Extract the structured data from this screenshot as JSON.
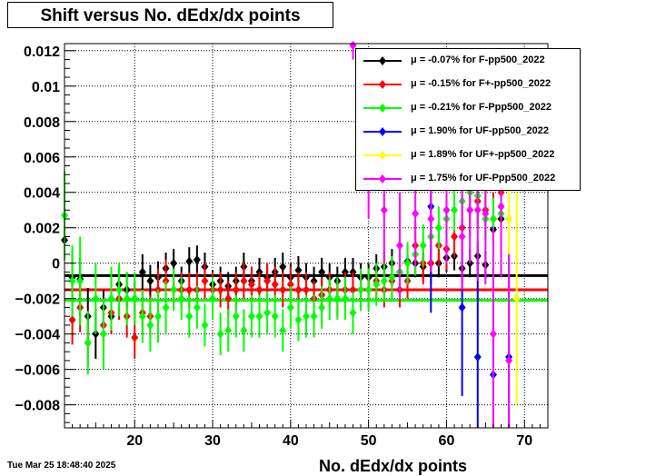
{
  "title": "Shift versus No. dEdx/dx points",
  "timestamp": "Tue Mar 25 18:48:40 2025",
  "chart_data": {
    "type": "scatter",
    "xlabel": "No. dEdx/dx points",
    "ylabel": "",
    "xlim": [
      11,
      73
    ],
    "ylim": [
      -0.0093,
      0.0124
    ],
    "x_ticks": [
      20,
      30,
      40,
      50,
      60,
      70
    ],
    "y_ticks": [
      -0.008,
      -0.006,
      -0.004,
      -0.002,
      0,
      0.002,
      0.004,
      0.006,
      0.008,
      0.01,
      0.012
    ],
    "x_tick_labels": [
      "20",
      "30",
      "40",
      "50",
      "60",
      "70"
    ],
    "y_tick_labels": [
      "−0.008",
      "−0.006",
      "−0.004",
      "−0.002",
      "0",
      "0.002",
      "0.004",
      "0.006",
      "0.008",
      "0.01",
      "0.012"
    ],
    "grid": true,
    "legend_position": "top-right",
    "series": [
      {
        "name": "F-pp500_2022",
        "legend_label": "μ = -0.07% for F-pp500_2022",
        "color": "#000000",
        "mean": -0.0007,
        "points": [
          [
            11,
            0.0013,
            0.001
          ],
          [
            12,
            -0.0008,
            0.0015
          ],
          [
            13,
            -0.0009,
            0.0012
          ],
          [
            14,
            -0.003,
            0.0016
          ],
          [
            15,
            -0.004,
            0.0014
          ],
          [
            16,
            -0.0025,
            0.001
          ],
          [
            17,
            -0.003,
            0.001
          ],
          [
            18,
            -0.0012,
            0.001
          ],
          [
            19,
            -0.0015,
            0.001
          ],
          [
            20,
            -0.002,
            0.001
          ],
          [
            21,
            -0.0005,
            0.001
          ],
          [
            22,
            -0.001,
            0.0009
          ],
          [
            23,
            -0.0008,
            0.0009
          ],
          [
            24,
            -0.0003,
            0.0009
          ],
          [
            25,
            0.0,
            0.0008
          ],
          [
            26,
            -0.001,
            0.0008
          ],
          [
            27,
            0.0001,
            0.0008
          ],
          [
            28,
            0.0002,
            0.0008
          ],
          [
            29,
            -0.0002,
            0.0008
          ],
          [
            30,
            -0.0012,
            0.0008
          ],
          [
            31,
            -0.001,
            0.0008
          ],
          [
            32,
            -0.0013,
            0.0008
          ],
          [
            33,
            -0.001,
            0.0008
          ],
          [
            34,
            -0.0002,
            0.0008
          ],
          [
            35,
            -0.001,
            0.0008
          ],
          [
            36,
            -0.0005,
            0.0008
          ],
          [
            37,
            -0.0008,
            0.0008
          ],
          [
            38,
            -0.0005,
            0.0008
          ],
          [
            39,
            -0.0002,
            0.0008
          ],
          [
            40,
            -0.0008,
            0.0008
          ],
          [
            41,
            -0.0004,
            0.0008
          ],
          [
            42,
            -0.0008,
            0.0008
          ],
          [
            43,
            -0.001,
            0.0008
          ],
          [
            44,
            -0.0005,
            0.0008
          ],
          [
            45,
            -0.0008,
            0.0008
          ],
          [
            46,
            -0.001,
            0.0008
          ],
          [
            47,
            -0.0005,
            0.0008
          ],
          [
            48,
            -0.0005,
            0.0008
          ],
          [
            49,
            -0.0008,
            0.0008
          ],
          [
            50,
            -0.0008,
            0.0008
          ],
          [
            51,
            -0.0003,
            0.0008
          ],
          [
            52,
            -0.0002,
            0.0008
          ],
          [
            53,
            0.0,
            0.0008
          ],
          [
            54,
            -0.0005,
            0.0008
          ],
          [
            55,
            0.0001,
            0.0008
          ],
          [
            56,
            0.0,
            0.0008
          ],
          [
            57,
            -0.0002,
            0.0008
          ],
          [
            58,
            0.0,
            0.0008
          ],
          [
            59,
            0.0,
            0.0008
          ],
          [
            60,
            0.0003,
            0.0008
          ],
          [
            61,
            0.0004,
            0.0008
          ],
          [
            62,
            -0.0003,
            0.0008
          ],
          [
            63,
            0.0,
            0.0008
          ],
          [
            64,
            0.0004,
            0.0008
          ],
          [
            65,
            -0.0001,
            0.0008
          ],
          [
            66,
            0.0019,
            0.0008
          ],
          [
            67,
            0.0025,
            0.0008
          ]
        ]
      },
      {
        "name": "F+-pp500_2022",
        "legend_label": "μ = -0.15% for F+-pp500_2022",
        "color": "#ff0000",
        "mean": -0.0015,
        "points": [
          [
            12,
            -0.0032,
            0.0014
          ],
          [
            13,
            -0.0025,
            0.0014
          ],
          [
            14,
            -0.0045,
            0.0013
          ],
          [
            16,
            -0.0035,
            0.0012
          ],
          [
            17,
            -0.0028,
            0.0012
          ],
          [
            18,
            -0.002,
            0.0012
          ],
          [
            19,
            -0.003,
            0.0012
          ],
          [
            20,
            -0.0042,
            0.0012
          ],
          [
            21,
            -0.0028,
            0.0012
          ],
          [
            22,
            -0.003,
            0.0012
          ],
          [
            23,
            -0.0015,
            0.0012
          ],
          [
            24,
            -0.001,
            0.0012
          ],
          [
            25,
            -0.0015,
            0.001
          ],
          [
            26,
            -0.0015,
            0.001
          ],
          [
            27,
            -0.0015,
            0.001
          ],
          [
            28,
            -0.0015,
            0.001
          ],
          [
            29,
            -0.001,
            0.001
          ],
          [
            30,
            -0.0015,
            0.001
          ],
          [
            31,
            -0.0015,
            0.001
          ],
          [
            32,
            -0.002,
            0.001
          ],
          [
            33,
            -0.0015,
            0.001
          ],
          [
            34,
            -0.001,
            0.001
          ],
          [
            35,
            -0.0012,
            0.001
          ],
          [
            36,
            -0.0015,
            0.001
          ],
          [
            37,
            -0.001,
            0.001
          ],
          [
            38,
            -0.0012,
            0.001
          ],
          [
            39,
            -0.0015,
            0.001
          ],
          [
            40,
            -0.0012,
            0.001
          ],
          [
            41,
            -0.0015,
            0.001
          ],
          [
            42,
            -0.0015,
            0.001
          ],
          [
            43,
            -0.002,
            0.001
          ],
          [
            44,
            -0.0018,
            0.001
          ],
          [
            45,
            -0.0015,
            0.001
          ],
          [
            46,
            -0.002,
            0.001
          ],
          [
            47,
            -0.0015,
            0.001
          ],
          [
            48,
            -0.0015,
            0.001
          ],
          [
            49,
            -0.0015,
            0.001
          ],
          [
            50,
            -0.0015,
            0.001
          ],
          [
            51,
            -0.001,
            0.001
          ],
          [
            52,
            -0.0015,
            0.001
          ],
          [
            53,
            -0.001,
            0.001
          ],
          [
            54,
            -0.0015,
            0.001
          ],
          [
            55,
            -0.001,
            0.001
          ],
          [
            56,
            0.001,
            0.0012
          ],
          [
            57,
            0.0,
            0.0012
          ],
          [
            58,
            0.0,
            0.0012
          ],
          [
            59,
            0.001,
            0.0012
          ],
          [
            60,
            0.0008,
            0.0012
          ],
          [
            61,
            0.0015,
            0.0012
          ],
          [
            62,
            0.002,
            0.0015
          ],
          [
            63,
            0.003,
            0.0015
          ],
          [
            64,
            0.0035,
            0.0015
          ],
          [
            65,
            0.003,
            0.0015
          ],
          [
            66,
            0.0025,
            0.0015
          ],
          [
            67,
            0.004,
            0.0015
          ]
        ]
      },
      {
        "name": "F-Ppp500_2022",
        "legend_label": "μ = -0.21% for F-Ppp500_2022",
        "color": "#00ff00",
        "mean": -0.0021,
        "points": [
          [
            11,
            0.0027,
            0.0025
          ],
          [
            12,
            -0.001,
            0.002
          ],
          [
            13,
            -0.001,
            0.0025
          ],
          [
            14,
            -0.0045,
            0.0018
          ],
          [
            15,
            -0.002,
            0.002
          ],
          [
            16,
            -0.004,
            0.002
          ],
          [
            17,
            -0.002,
            0.0018
          ],
          [
            18,
            -0.0015,
            0.0015
          ],
          [
            19,
            -0.002,
            0.0015
          ],
          [
            20,
            -0.002,
            0.0015
          ],
          [
            21,
            -0.003,
            0.0015
          ],
          [
            22,
            -0.0035,
            0.0015
          ],
          [
            23,
            -0.003,
            0.0015
          ],
          [
            24,
            -0.0025,
            0.0015
          ],
          [
            25,
            -0.0015,
            0.0012
          ],
          [
            26,
            -0.002,
            0.0012
          ],
          [
            27,
            -0.003,
            0.0012
          ],
          [
            28,
            -0.0025,
            0.0012
          ],
          [
            29,
            -0.0035,
            0.0012
          ],
          [
            30,
            -0.002,
            0.0012
          ],
          [
            31,
            -0.004,
            0.0012
          ],
          [
            32,
            -0.0038,
            0.0012
          ],
          [
            33,
            -0.003,
            0.0012
          ],
          [
            34,
            -0.0038,
            0.0012
          ],
          [
            35,
            -0.003,
            0.0012
          ],
          [
            36,
            -0.003,
            0.0012
          ],
          [
            37,
            -0.0028,
            0.0012
          ],
          [
            38,
            -0.003,
            0.0012
          ],
          [
            39,
            -0.0038,
            0.0012
          ],
          [
            40,
            -0.0025,
            0.0012
          ],
          [
            41,
            -0.0032,
            0.0012
          ],
          [
            42,
            -0.003,
            0.0012
          ],
          [
            43,
            -0.003,
            0.0012
          ],
          [
            44,
            -0.0025,
            0.0012
          ],
          [
            45,
            -0.002,
            0.0012
          ],
          [
            46,
            -0.002,
            0.0012
          ],
          [
            47,
            -0.002,
            0.0012
          ],
          [
            48,
            -0.0028,
            0.0012
          ],
          [
            49,
            -0.0015,
            0.0012
          ],
          [
            50,
            -0.0015,
            0.0012
          ],
          [
            51,
            -0.0012,
            0.0012
          ],
          [
            52,
            -0.001,
            0.0012
          ],
          [
            53,
            -0.0008,
            0.0012
          ],
          [
            54,
            -0.0005,
            0.0012
          ],
          [
            55,
            0.0,
            0.0012
          ],
          [
            56,
            0.0005,
            0.0012
          ],
          [
            57,
            0.001,
            0.0012
          ],
          [
            58,
            0.0015,
            0.0012
          ],
          [
            59,
            0.002,
            0.0012
          ],
          [
            60,
            0.0025,
            0.0012
          ],
          [
            61,
            0.003,
            0.0012
          ],
          [
            62,
            0.0035,
            0.0012
          ],
          [
            63,
            0.004,
            0.0012
          ],
          [
            64,
            0.0038,
            0.0012
          ],
          [
            65,
            0.0025,
            0.0012
          ],
          [
            66,
            0.0025,
            0.0012
          ],
          [
            67,
            0.0028,
            0.0012
          ]
        ]
      },
      {
        "name": "UF-pp500_2022",
        "legend_label": "μ =  1.90% for UF-pp500_2022",
        "color": "#0000ff",
        "mean": 0.019,
        "points": [
          [
            58,
            0.0032,
            0.006
          ],
          [
            62,
            -0.0025,
            0.005
          ],
          [
            64,
            -0.0053,
            0.006
          ],
          [
            66,
            -0.0063,
            0.006
          ],
          [
            68,
            -0.0053,
            0.006
          ]
        ]
      },
      {
        "name": "UF+-pp500_2022",
        "legend_label": "μ =  1.89% for UF+-pp500_2022",
        "color": "#ffff00",
        "mean": 0.0189,
        "points": [
          [
            68,
            0.0025,
            0.006
          ],
          [
            69,
            -0.002,
            0.006
          ]
        ]
      },
      {
        "name": "UF-Ppp500_2022",
        "legend_label": "μ =  1.75% for UF-Ppp500_2022",
        "color": "#ff00ff",
        "mean": 0.0175,
        "points": [
          [
            48,
            0.0123,
            0.0008
          ],
          [
            50,
            0.0055,
            0.003
          ],
          [
            52,
            0.003,
            0.003
          ],
          [
            54,
            0.001,
            0.003
          ],
          [
            56,
            0.0028,
            0.003
          ],
          [
            58,
            0.0025,
            0.003
          ],
          [
            60,
            0.003,
            0.003
          ],
          [
            62,
            0.0015,
            0.003
          ],
          [
            63,
            0.003,
            0.003
          ],
          [
            64,
            0.003,
            0.004
          ],
          [
            65,
            0.0028,
            0.004
          ],
          [
            66,
            -0.004,
            0.006
          ],
          [
            67,
            0.0032,
            0.004
          ],
          [
            68,
            -0.0055,
            0.006
          ]
        ]
      }
    ]
  }
}
